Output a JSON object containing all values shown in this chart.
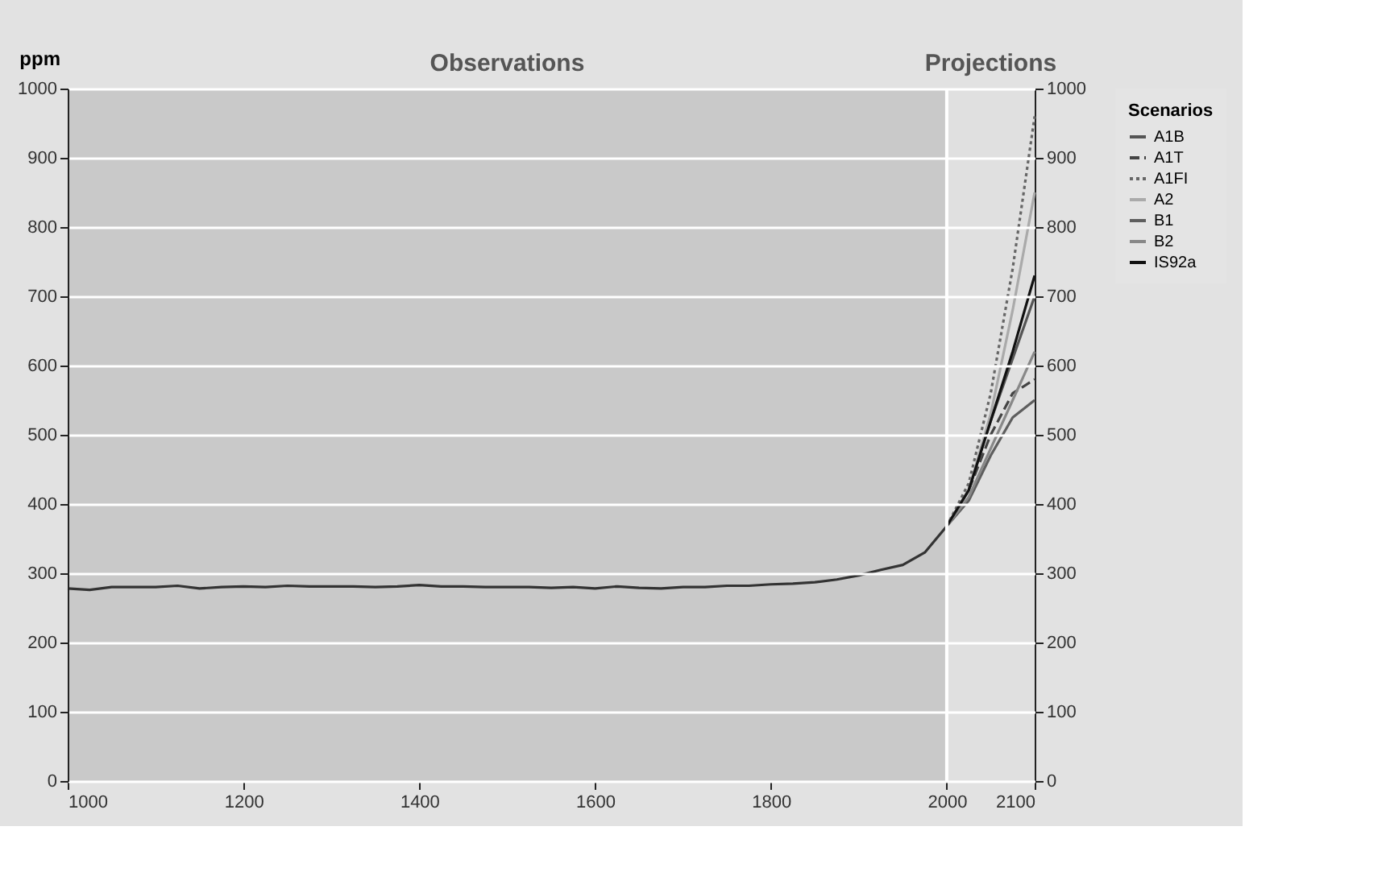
{
  "chart_data": {
    "type": "line",
    "ylabel": "ppm",
    "legend_title": "Scenarios",
    "xlim": [
      1000,
      2100
    ],
    "xticks": [
      1000,
      1200,
      1400,
      1600,
      1800,
      2000,
      2100
    ],
    "ylim": [
      0,
      1000
    ],
    "yticks": [
      0,
      100,
      200,
      300,
      400,
      500,
      600,
      700,
      800,
      900,
      1000
    ],
    "y2lim": [
      0,
      1000
    ],
    "y2ticks": [
      0,
      100,
      200,
      300,
      400,
      500,
      600,
      700,
      800,
      900,
      1000
    ],
    "grid": "y",
    "legend": "top right",
    "marker": "none",
    "bands": [
      {
        "axis": "x",
        "from": 1000,
        "to": 2000,
        "label": "Observations",
        "color": "#c9c9c9"
      },
      {
        "axis": "x",
        "from": 2000,
        "to": 2100,
        "label": "Projections",
        "color": "#e0e0e0"
      }
    ],
    "ref_lines": [
      {
        "axis": "x",
        "value": 2000,
        "color": "#ffffff"
      }
    ],
    "series": [
      {
        "color": "#333333",
        "line_style": "solid",
        "x": [
          1000,
          1025,
          1050,
          1075,
          1100,
          1125,
          1150,
          1175,
          1200,
          1225,
          1250,
          1275,
          1300,
          1325,
          1350,
          1375,
          1400,
          1425,
          1450,
          1475,
          1500,
          1525,
          1550,
          1575,
          1600,
          1625,
          1650,
          1675,
          1700,
          1725,
          1750,
          1775,
          1800,
          1825,
          1850,
          1875,
          1900,
          1925,
          1950,
          1975,
          2000
        ],
        "values": [
          278,
          276,
          280,
          280,
          280,
          282,
          278,
          280,
          281,
          280,
          282,
          281,
          281,
          281,
          280,
          281,
          283,
          281,
          281,
          280,
          280,
          280,
          279,
          280,
          278,
          281,
          279,
          278,
          280,
          280,
          282,
          282,
          284,
          285,
          287,
          291,
          297,
          305,
          312,
          330,
          368
        ]
      },
      {
        "name": "A1B",
        "color": "#555555",
        "line_style": "solid",
        "x": [
          2000,
          2025,
          2050,
          2075,
          2100
        ],
        "values": [
          368,
          420,
          520,
          610,
          700
        ]
      },
      {
        "name": "A1T",
        "color": "#444444",
        "line_style": "dashed",
        "x": [
          2000,
          2025,
          2050,
          2075,
          2100
        ],
        "values": [
          368,
          420,
          500,
          560,
          580
        ]
      },
      {
        "name": "A1FI",
        "color": "#666666",
        "line_style": "dotted",
        "x": [
          2000,
          2025,
          2050,
          2075,
          2100
        ],
        "values": [
          368,
          430,
          560,
          740,
          960
        ]
      },
      {
        "name": "A2",
        "color": "#aaaaaa",
        "line_style": "solid",
        "x": [
          2000,
          2025,
          2050,
          2075,
          2100
        ],
        "values": [
          368,
          420,
          530,
          680,
          850
        ]
      },
      {
        "name": "B1",
        "color": "#5e5e5e",
        "line_style": "solid",
        "x": [
          2000,
          2025,
          2050,
          2075,
          2100
        ],
        "values": [
          368,
          405,
          470,
          525,
          550
        ]
      },
      {
        "name": "B2",
        "color": "#888888",
        "line_style": "solid",
        "x": [
          2000,
          2025,
          2050,
          2075,
          2100
        ],
        "values": [
          368,
          410,
          480,
          550,
          620
        ]
      },
      {
        "name": "IS92a",
        "color": "#111111",
        "line_style": "solid",
        "x": [
          2000,
          2025,
          2050,
          2075,
          2100
        ],
        "values": [
          368,
          420,
          520,
          620,
          730
        ]
      }
    ]
  }
}
